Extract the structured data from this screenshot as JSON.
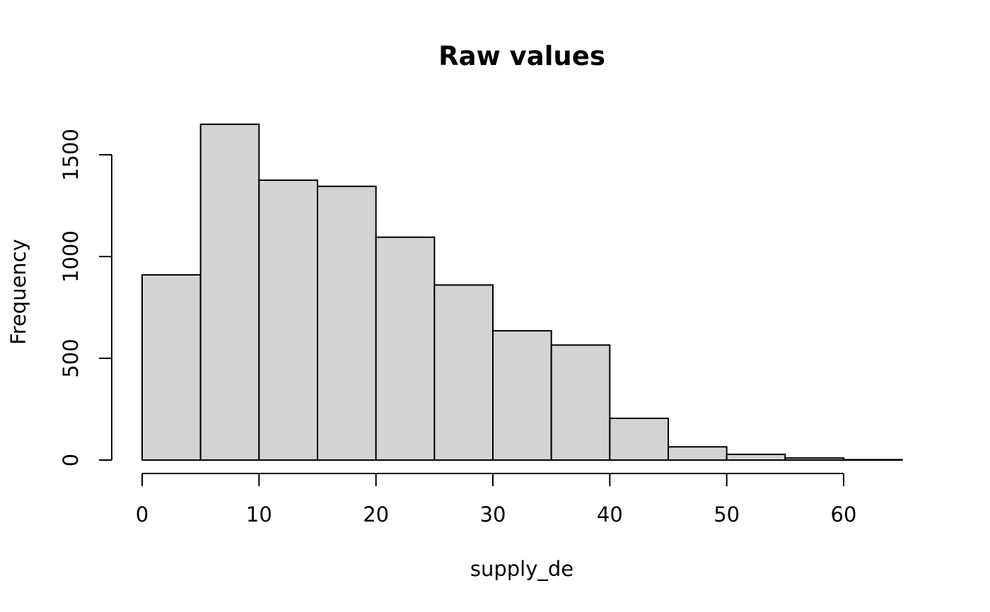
{
  "chart_data": {
    "type": "bar",
    "title": "Raw values",
    "xlabel": "supply_de",
    "ylabel": "Frequency",
    "bin_edges": [
      0,
      5,
      10,
      15,
      20,
      25,
      30,
      35,
      40,
      45,
      50,
      55,
      60,
      65
    ],
    "values": [
      910,
      1650,
      1375,
      1345,
      1095,
      860,
      635,
      565,
      205,
      65,
      28,
      10,
      2
    ],
    "x_ticks": [
      0,
      10,
      20,
      30,
      40,
      50,
      60
    ],
    "x_tick_labels": [
      "0",
      "10",
      "20",
      "30",
      "40",
      "50",
      "60"
    ],
    "y_ticks": [
      0,
      500,
      1000,
      1500
    ],
    "y_tick_labels": [
      "0",
      "500",
      "1000",
      "1500"
    ],
    "bar_color": "#d3d3d3",
    "edge_color": "#000000",
    "grid": false,
    "legend": "none"
  }
}
